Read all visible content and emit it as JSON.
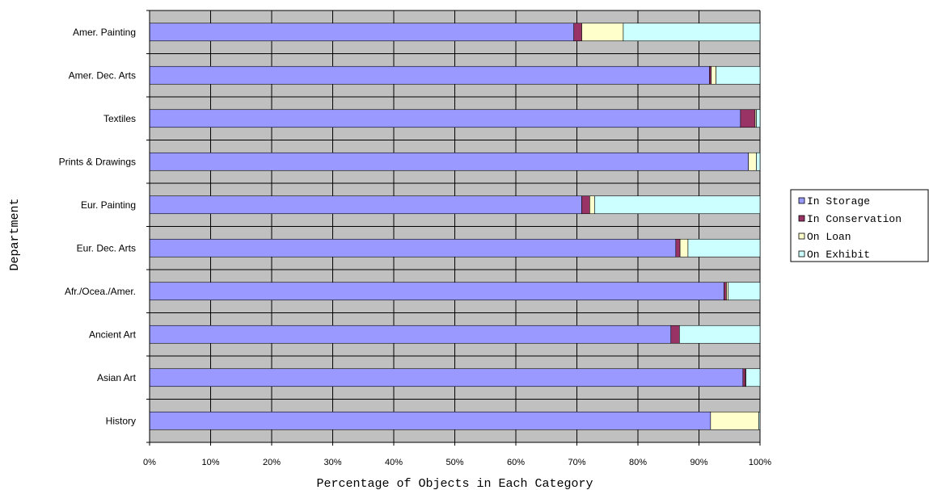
{
  "chart_data": {
    "type": "bar",
    "orientation": "horizontal",
    "stacked": true,
    "categories": [
      "Amer. Painting",
      "Amer. Dec. Arts",
      "Textiles",
      "Prints & Drawings",
      "Eur. Painting",
      "Eur. Dec. Arts",
      "Afr./Ocea./Amer.",
      "Ancient Art",
      "Asian Art",
      "History"
    ],
    "series": [
      {
        "name": "In Storage",
        "color": "#9999ff",
        "values": [
          0.695,
          0.917,
          0.968,
          0.981,
          0.708,
          0.862,
          0.941,
          0.854,
          0.972,
          0.919
        ]
      },
      {
        "name": "In Conservation",
        "color": "#993366",
        "values": [
          0.013,
          0.003,
          0.024,
          0.0,
          0.013,
          0.007,
          0.004,
          0.014,
          0.004,
          0.0
        ]
      },
      {
        "name": "On Loan",
        "color": "#ffffcc",
        "values": [
          0.068,
          0.008,
          0.002,
          0.013,
          0.008,
          0.013,
          0.003,
          0.0,
          0.001,
          0.079
        ]
      },
      {
        "name": "On Exhibit",
        "color": "#ccffff",
        "values": [
          0.224,
          0.072,
          0.006,
          0.006,
          0.271,
          0.118,
          0.052,
          0.132,
          0.023,
          0.002
        ]
      }
    ],
    "xlim": [
      0,
      1
    ],
    "x_ticks": [
      "0%",
      "10%",
      "20%",
      "30%",
      "40%",
      "50%",
      "60%",
      "70%",
      "80%",
      "90%",
      "100%"
    ],
    "xlabel": "Percentage of Objects in Each Category",
    "ylabel": "Department",
    "grid": true,
    "plot_background": "#c0c0c0",
    "legend_position": "right"
  }
}
